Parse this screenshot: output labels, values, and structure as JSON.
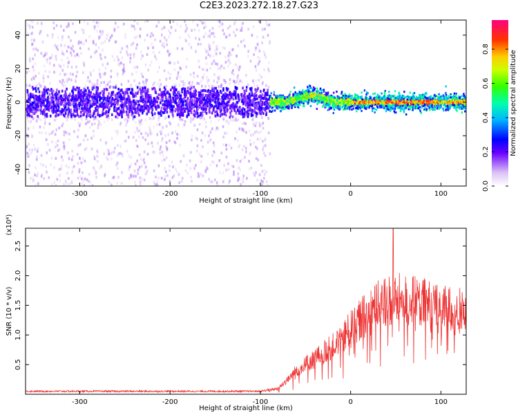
{
  "title": "C2E3.2023.272.18.27.G23",
  "colors": {
    "snr_line": "#ee3333",
    "background": "#ffffff",
    "axis": "#000000"
  },
  "chart_data": [
    {
      "type": "heatmap",
      "xlabel": "Height of straight line (km)",
      "ylabel": "Frequency (Hz)",
      "xlim": [
        -360,
        128
      ],
      "ylim": [
        -50,
        49
      ],
      "x_ticks": [
        -300,
        -200,
        -100,
        0,
        100
      ],
      "x_tick_labels": [
        "-300",
        "-200",
        "-100",
        "0",
        "100"
      ],
      "y_ticks": [
        -40,
        -20,
        0,
        20,
        40
      ],
      "y_tick_labels": [
        "-40",
        "-20",
        "0",
        "20",
        "40"
      ],
      "colorbar": {
        "label": "Normalized spectral amplitude",
        "range": [
          0,
          0.97
        ],
        "ticks": [
          0.0,
          0.2,
          0.4,
          0.6,
          0.8
        ],
        "tick_labels": [
          "0.0",
          "0.2",
          "0.4",
          "0.6",
          "0.8"
        ]
      },
      "regions": [
        {
          "x_range": [
            -360,
            -90
          ],
          "description_free": true,
          "central_band_hz": [
            -8,
            8
          ],
          "scatter_hz": [
            -50,
            49
          ],
          "amplitude": [
            0.05,
            0.3
          ]
        },
        {
          "x_range": [
            -90,
            128
          ],
          "central_band_hz": [
            -4,
            4
          ],
          "amplitude": [
            0.2,
            0.95
          ]
        }
      ],
      "grid": false
    },
    {
      "type": "line",
      "xlabel": "Height of straight line (km)",
      "ylabel": "SNR (10 * v/v)",
      "y_multiplier_label": "(x10⁴)",
      "xlim": [
        -360,
        128
      ],
      "ylim": [
        0,
        2.8
      ],
      "x_ticks": [
        -300,
        -200,
        -100,
        0,
        100
      ],
      "x_tick_labels": [
        "-300",
        "-200",
        "-100",
        "0",
        "100"
      ],
      "y_ticks": [
        0.5,
        1.0,
        1.5,
        2.0,
        2.5
      ],
      "y_tick_labels": [
        "0.5",
        "1.0",
        "1.5",
        "2.0",
        "2.5"
      ],
      "series_envelope": {
        "x": [
          -360,
          -100,
          -80,
          -60,
          -40,
          -20,
          0,
          20,
          40,
          60,
          80,
          100,
          128
        ],
        "y": [
          0.05,
          0.05,
          0.1,
          0.4,
          0.6,
          0.8,
          1.1,
          1.4,
          1.6,
          1.6,
          1.55,
          1.45,
          1.4
        ]
      },
      "peak": {
        "x": 47,
        "y": 2.8
      },
      "grid": false
    }
  ]
}
